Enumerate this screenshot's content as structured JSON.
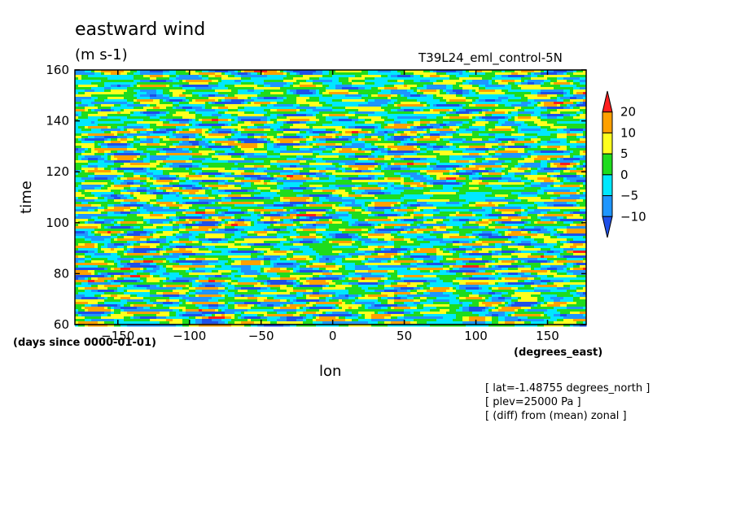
{
  "header": {
    "title": "eastward wind",
    "units": "(m s-1)",
    "case_label": "T39L24_eml_control-5N"
  },
  "notes": [
    "[ lat=-1.48755 degrees_north ]",
    "[ plev=25000 Pa ]",
    "[ (diff) from (mean) zonal ]"
  ],
  "chart_data": {
    "type": "heatmap",
    "title": "eastward wind",
    "subtitle": "(m s-1)",
    "xlabel": "lon",
    "x_units": "(degrees_east)",
    "ylabel": "time",
    "y_units": "(days since 0000-01-01)",
    "xlim": [
      -180,
      177
    ],
    "ylim": [
      60,
      160
    ],
    "x_ticks": [
      -150,
      -100,
      -50,
      0,
      50,
      100,
      150
    ],
    "x_tick_labels": [
      "−150",
      "−100",
      "−50",
      "0",
      "50",
      "100",
      "150"
    ],
    "y_ticks": [
      60,
      80,
      100,
      120,
      140,
      160
    ],
    "y_tick_labels": [
      "60",
      "80",
      "100",
      "120",
      "140",
      "160"
    ],
    "levels": [
      -10,
      -5,
      0,
      5,
      10,
      20
    ],
    "colorbar_labels": [
      "20",
      "10",
      "5",
      "0",
      "−5",
      "−10"
    ],
    "colors": [
      "#1e50e8",
      "#1e96ff",
      "#00e8ff",
      "#1edc1e",
      "#ffff1e",
      "#ffa000",
      "#ff1e1e"
    ],
    "bands": [
      {
        "range": "< -10",
        "color": "#1e50e8"
      },
      {
        "range": "-10 to -5",
        "color": "#1e96ff"
      },
      {
        "range": "-5 to 0",
        "color": "#00e8ff"
      },
      {
        "range": "0 to 5",
        "color": "#1edc1e"
      },
      {
        "range": "5 to 10",
        "color": "#ffff1e"
      },
      {
        "range": "10 to 20",
        "color": "#ffa000"
      },
      {
        "range": "> 20",
        "color": "#ff1e1e"
      }
    ],
    "grid": false,
    "legend": "right colorbar"
  }
}
